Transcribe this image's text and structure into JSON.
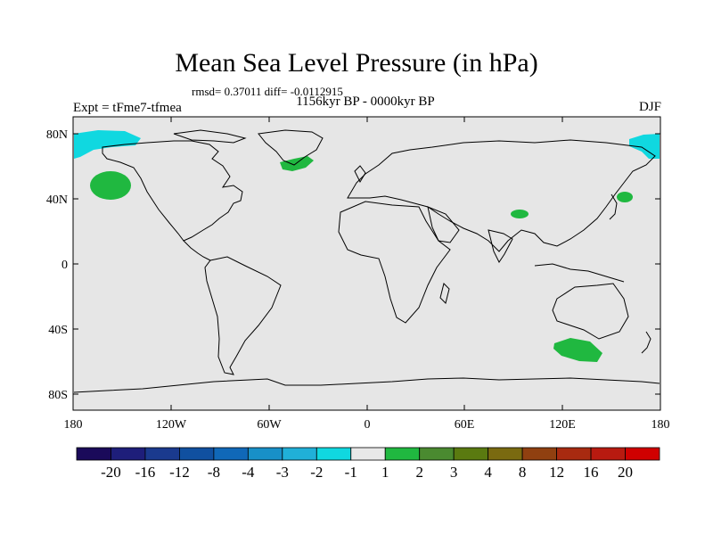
{
  "title": "Mean Sea Level Pressure (in hPa)",
  "rmsd_line": "rmsd= 0.37011 diff= -0.0112915",
  "period": "1156kyr BP - 0000kyr BP",
  "experiment": "Expt = tFme7-tfmea",
  "season": "DJF",
  "lat_ticks": [
    "80N",
    "40N",
    "0",
    "40S",
    "80S"
  ],
  "lon_ticks": [
    "180",
    "120W",
    "60W",
    "0",
    "60E",
    "120E",
    "180"
  ],
  "colorbar": {
    "labels": [
      "-20",
      "-16",
      "-12",
      "-8",
      "-4",
      "-3",
      "-2",
      "-1",
      "1",
      "2",
      "3",
      "4",
      "8",
      "12",
      "16",
      "20"
    ],
    "colors": [
      "#1a0a5a",
      "#1e1e7a",
      "#1a3a8e",
      "#1050a0",
      "#1068b8",
      "#1890c8",
      "#20b0d8",
      "#10d8e0",
      "#e8e8e8",
      "#20b840",
      "#4a8a30",
      "#5a7a10",
      "#7a6a10",
      "#904010",
      "#a82a10",
      "#b81a10",
      "#d00000"
    ]
  },
  "colors": {
    "ocean_land": "#e6e6e6",
    "positive_2": "#20b840",
    "negative_1": "#10d8e0"
  }
}
